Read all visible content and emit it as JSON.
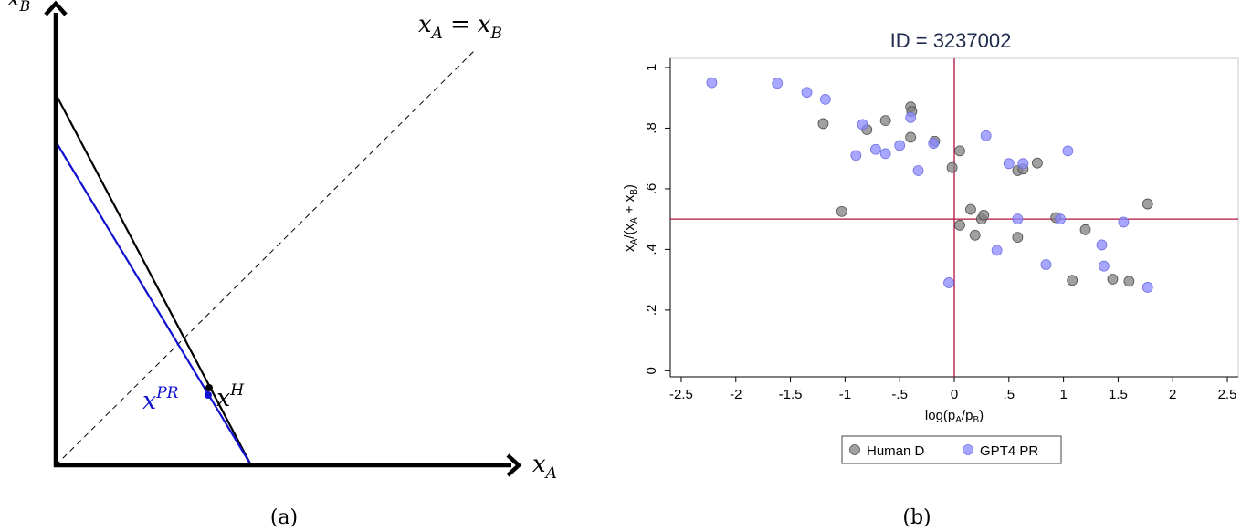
{
  "panel_a": {
    "caption": "(a)",
    "labels": {
      "y_axis": {
        "base": "x",
        "sub": "B"
      },
      "x_axis": {
        "base": "x",
        "sub": "A"
      },
      "diagonal": {
        "lhs_base": "x",
        "lhs_sub": "A",
        "eq": "=",
        "rhs_base": "x",
        "rhs_sub": "B"
      },
      "human_point": {
        "base": "x",
        "sup": "H"
      },
      "pr_point": {
        "base": "x",
        "sup": "PR"
      }
    },
    "colors": {
      "axis": "#000000",
      "human_budget": "#000000",
      "pr_budget": "#1010d0",
      "diagonal": "#000000"
    }
  },
  "panel_b": {
    "caption": "(b)",
    "chart_data": {
      "type": "scatter",
      "title": "ID = 3237002",
      "xlabel": "log(p_A/p_B)",
      "ylabel": "x_A/(x_A + x_B)",
      "xlim": [
        -2.6,
        2.6
      ],
      "ylim": [
        -0.02,
        1.03
      ],
      "xticks": [
        {
          "v": -2.5,
          "label": "-2.5"
        },
        {
          "v": -2,
          "label": "-2"
        },
        {
          "v": -1.5,
          "label": "-1.5"
        },
        {
          "v": -1,
          "label": "-1"
        },
        {
          "v": -0.5,
          "label": "-.5"
        },
        {
          "v": 0,
          "label": "0"
        },
        {
          "v": 0.5,
          "label": ".5"
        },
        {
          "v": 1,
          "label": "1"
        },
        {
          "v": 1.5,
          "label": "1.5"
        },
        {
          "v": 2,
          "label": "2"
        },
        {
          "v": 2.5,
          "label": "2.5"
        }
      ],
      "yticks": [
        {
          "v": 0,
          "label": "0"
        },
        {
          "v": 0.2,
          "label": ".2"
        },
        {
          "v": 0.4,
          "label": ".4"
        },
        {
          "v": 0.6,
          "label": ".6"
        },
        {
          "v": 0.8,
          "label": ".8"
        },
        {
          "v": 1,
          "label": "1"
        }
      ],
      "reference_lines": {
        "x": 0,
        "y": 0.5,
        "color": "#b0103a"
      },
      "grid": false,
      "legend_position": "bottom",
      "series": [
        {
          "name": "Human D",
          "color": "#808080",
          "points": [
            [
              -1.2,
              0.815
            ],
            [
              -0.8,
              0.795
            ],
            [
              -0.63,
              0.825
            ],
            [
              -0.4,
              0.87
            ],
            [
              -0.39,
              0.855
            ],
            [
              -0.4,
              0.77
            ],
            [
              -0.18,
              0.757
            ],
            [
              -0.02,
              0.67
            ],
            [
              0.05,
              0.725
            ],
            [
              -1.03,
              0.525
            ],
            [
              0.05,
              0.48
            ],
            [
              0.15,
              0.532
            ],
            [
              0.19,
              0.447
            ],
            [
              0.25,
              0.5
            ],
            [
              0.27,
              0.513
            ],
            [
              0.58,
              0.66
            ],
            [
              0.63,
              0.665
            ],
            [
              0.76,
              0.685
            ],
            [
              0.58,
              0.44
            ],
            [
              0.93,
              0.505
            ],
            [
              1.08,
              0.298
            ],
            [
              1.2,
              0.465
            ],
            [
              1.45,
              0.302
            ],
            [
              1.6,
              0.295
            ],
            [
              1.77,
              0.55
            ]
          ]
        },
        {
          "name": "GPT4 PR",
          "color": "#8a8aff",
          "points": [
            [
              -2.22,
              0.95
            ],
            [
              -1.62,
              0.948
            ],
            [
              -1.35,
              0.918
            ],
            [
              -1.18,
              0.895
            ],
            [
              -0.84,
              0.812
            ],
            [
              -0.9,
              0.71
            ],
            [
              -0.72,
              0.73
            ],
            [
              -0.63,
              0.716
            ],
            [
              -0.5,
              0.743
            ],
            [
              -0.33,
              0.66
            ],
            [
              -0.4,
              0.835
            ],
            [
              -0.19,
              0.75
            ],
            [
              0.29,
              0.775
            ],
            [
              -0.05,
              0.29
            ],
            [
              0.39,
              0.397
            ],
            [
              0.5,
              0.683
            ],
            [
              0.63,
              0.683
            ],
            [
              0.58,
              0.5
            ],
            [
              0.97,
              0.5
            ],
            [
              1.04,
              0.725
            ],
            [
              0.84,
              0.35
            ],
            [
              1.35,
              0.415
            ],
            [
              1.37,
              0.345
            ],
            [
              1.55,
              0.49
            ],
            [
              1.77,
              0.275
            ]
          ]
        }
      ]
    }
  }
}
